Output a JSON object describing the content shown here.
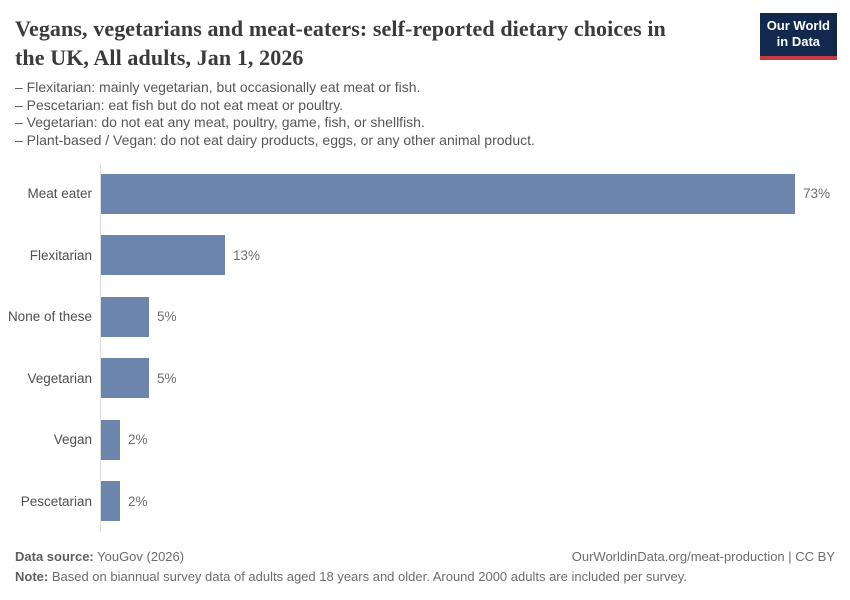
{
  "header": {
    "title_lines": [
      "Vegans, vegetarians and meat-eaters: self-reported dietary choices in",
      "the UK, All adults, Jan 1, 2026"
    ],
    "subtitle_lines": [
      "– Flexitarian: mainly vegetarian, but occasionally eat meat or fish.",
      "– Pescetarian: eat fish but do not eat meat or poultry.",
      "– Vegetarian: do not eat any meat, poultry, game, fish, or shellfish.",
      "– Plant-based / Vegan: do not eat dairy products, eggs, or any other animal product.",
      ""
    ],
    "logo": {
      "line1": "Our World",
      "line2": "in Data",
      "bg_color": "#12294d",
      "accent_color": "#c53b3f"
    }
  },
  "chart_data": {
    "type": "bar",
    "orientation": "horizontal",
    "title": "Vegans, vegetarians and meat-eaters: self-reported dietary choices in the UK, All adults, Jan 1, 2026",
    "categories": [
      "Meat eater",
      "Flexitarian",
      "None of these",
      "Vegetarian",
      "Vegan",
      "Pescetarian"
    ],
    "values": [
      73,
      13,
      5,
      5,
      2,
      2
    ],
    "value_labels": [
      "73%",
      "13%",
      "5%",
      "5%",
      "2%",
      "2%"
    ],
    "unit": "%",
    "xlim": [
      0,
      78
    ],
    "grid": false,
    "legend": "none",
    "bar_color": "#6c85ac",
    "axis_line_color": "#dedede"
  },
  "footer": {
    "datasource_label": "Data source:",
    "datasource_value": " YouGov (2026)",
    "link": "OurWorldinData.org/meat-production | CC BY",
    "note_label": "Note:",
    "note_value": " Based on biannual survey data of adults aged 18 years and older. Around 2000 adults are included per survey."
  }
}
